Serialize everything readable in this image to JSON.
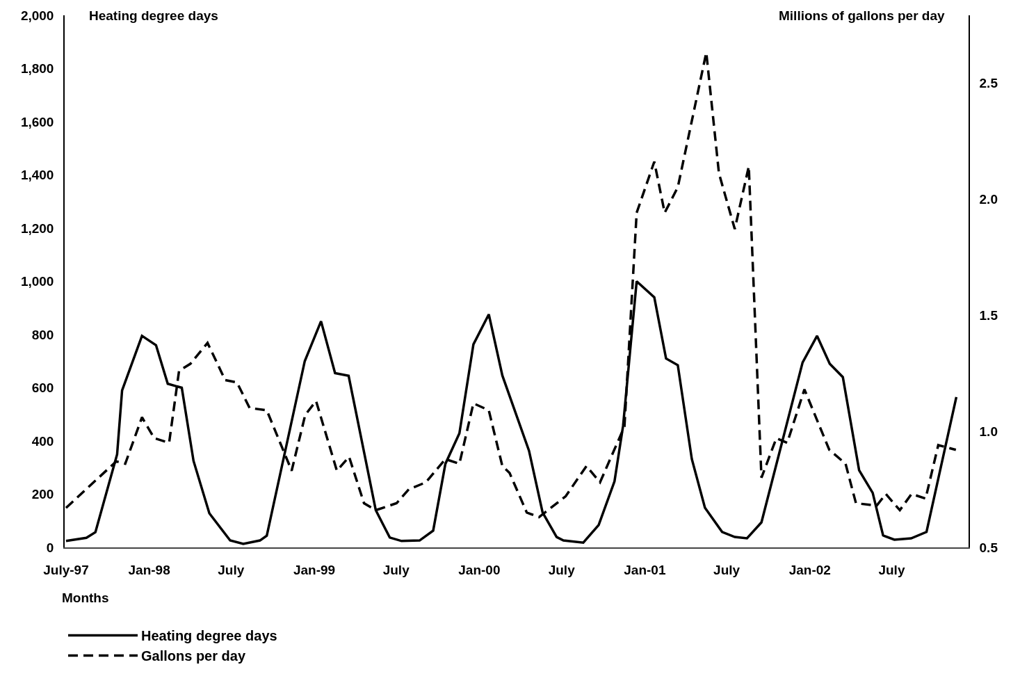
{
  "chart_data": {
    "type": "line",
    "ylabel": "Heating degree days",
    "y2label": "Millions of gallons per day",
    "xlabel": "Months",
    "xlim": [
      "1997-06-28",
      "2002-12-18"
    ],
    "xticks": [
      {
        "value": "1997-07-01",
        "label": "July-97"
      },
      {
        "value": "1998-01-01",
        "label": "Jan-98"
      },
      {
        "value": "1998-07-01",
        "label": "July"
      },
      {
        "value": "1999-01-01",
        "label": "Jan-99"
      },
      {
        "value": "1999-07-01",
        "label": "July"
      },
      {
        "value": "2000-01-01",
        "label": "Jan-00"
      },
      {
        "value": "2000-07-01",
        "label": "July"
      },
      {
        "value": "2001-01-01",
        "label": "Jan-01"
      },
      {
        "value": "2001-07-01",
        "label": "July"
      },
      {
        "value": "2002-01-01",
        "label": "Jan-02"
      },
      {
        "value": "2002-07-01",
        "label": "July"
      }
    ],
    "ylim": [
      0,
      2000
    ],
    "yticks": [
      0,
      200,
      400,
      600,
      800,
      {
        "value": 1000,
        "label": "1,000"
      },
      {
        "value": 1200,
        "label": "1,200"
      },
      {
        "value": 1400,
        "label": "1,400"
      },
      {
        "value": 1600,
        "label": "1,600"
      },
      {
        "value": 1800,
        "label": "1,800"
      },
      {
        "value": 2000,
        "label": "2,000"
      }
    ],
    "y2lim": [
      0.5,
      2.79
    ],
    "y2ticks": [
      0.5,
      {
        "value": 1,
        "label": "1.0"
      },
      1.5,
      {
        "value": 2,
        "label": "2.0"
      },
      2.5
    ],
    "legend": "bottom left",
    "marker": "none",
    "series": [
      {
        "name": "Heating degree days",
        "color": "#000000",
        "line_style": "solid",
        "x": [
          "1997-07-01",
          "1997-08-15",
          "1997-09-04",
          "1997-10-22",
          "1997-11-02",
          "1997-12-16",
          "1998-01-16",
          "1998-02-11",
          "1998-03-14",
          "1998-04-09",
          "1998-05-14",
          "1998-06-29",
          "1998-07-28",
          "1998-09-03",
          "1998-09-18",
          "1998-12-11",
          "1999-01-16",
          "1999-02-16",
          "1999-03-18",
          "1999-05-17",
          "1999-06-17",
          "1999-07-13",
          "1999-08-22",
          "1999-09-21",
          "1999-10-18",
          "1999-11-18",
          "1999-12-19",
          "2000-01-22",
          "2000-02-21",
          "2000-04-20",
          "2000-05-20",
          "2000-06-20",
          "2000-07-05",
          "2000-08-18",
          "2000-09-21",
          "2000-10-26",
          "2000-11-14",
          "2000-12-14",
          "2001-01-22",
          "2001-02-17",
          "2001-03-15",
          "2001-04-15",
          "2001-05-14",
          "2001-06-21",
          "2001-07-19",
          "2001-08-15",
          "2001-09-16",
          "2001-12-16",
          "2002-01-17",
          "2002-02-14",
          "2002-03-15",
          "2002-04-20",
          "2002-05-20",
          "2002-06-12",
          "2002-07-07",
          "2002-08-13",
          "2002-09-16",
          "2002-11-21"
        ],
        "values": [
          24,
          36,
          57,
          350,
          590,
          795,
          760,
          615,
          600,
          325,
          128,
          26,
          13,
          26,
          44,
          700,
          850,
          655,
          645,
          140,
          37,
          24,
          26,
          63,
          314,
          429,
          763,
          876,
          646,
          363,
          131,
          39,
          26,
          18,
          84,
          248,
          457,
          1000,
          940,
          710,
          685,
          332,
          149,
          58,
          39,
          34,
          94,
          695,
          795,
          690,
          640,
          290,
          205,
          45,
          29,
          34,
          58,
          565
        ]
      },
      {
        "name": "Gallons per day",
        "color": "#000000",
        "line_style": "dashed",
        "axis": "y2",
        "x": [
          "1997-07-01",
          "1997-10-20",
          "1997-11-09",
          "1997-12-16",
          "1998-01-12",
          "1998-02-14",
          "1998-03-08",
          "1998-04-02",
          "1998-05-10",
          "1998-06-18",
          "1998-07-14",
          "1998-08-11",
          "1998-09-18",
          "1998-11-12",
          "1998-12-12",
          "1999-01-05",
          "1999-02-20",
          "1999-03-19",
          "1999-04-21",
          "1999-05-17",
          "1999-07-02",
          "1999-07-29",
          "1999-09-05",
          "1999-10-18",
          "1999-11-18",
          "1999-12-19",
          "2000-01-22",
          "2000-02-21",
          "2000-03-08",
          "2000-04-15",
          "2000-05-12",
          "2000-07-10",
          "2000-08-25",
          "2000-09-24",
          "2000-11-17",
          "2000-12-14",
          "2001-01-22",
          "2001-02-14",
          "2001-03-15",
          "2001-05-17",
          "2001-06-14",
          "2001-07-19",
          "2001-08-19",
          "2001-09-16",
          "2001-10-19",
          "2001-11-12",
          "2001-12-20",
          "2002-02-13",
          "2002-03-21",
          "2002-04-13",
          "2002-05-29",
          "2002-06-18",
          "2002-07-19",
          "2002-08-14",
          "2002-09-14",
          "2002-10-12",
          "2002-11-20"
        ],
        "values": [
          0.67,
          0.87,
          0.86,
          1.06,
          0.97,
          0.95,
          1.26,
          1.29,
          1.38,
          1.22,
          1.21,
          1.1,
          1.09,
          0.83,
          1.07,
          1.13,
          0.83,
          0.89,
          0.69,
          0.66,
          0.69,
          0.75,
          0.78,
          0.88,
          0.86,
          1.12,
          1.09,
          0.85,
          0.82,
          0.65,
          0.63,
          0.72,
          0.85,
          0.78,
          1.02,
          1.94,
          2.16,
          1.94,
          2.05,
          2.63,
          2.11,
          1.87,
          2.14,
          0.8,
          0.97,
          0.95,
          1.18,
          0.92,
          0.86,
          0.69,
          0.68,
          0.73,
          0.66,
          0.73,
          0.71,
          0.94,
          0.92
        ]
      }
    ]
  }
}
